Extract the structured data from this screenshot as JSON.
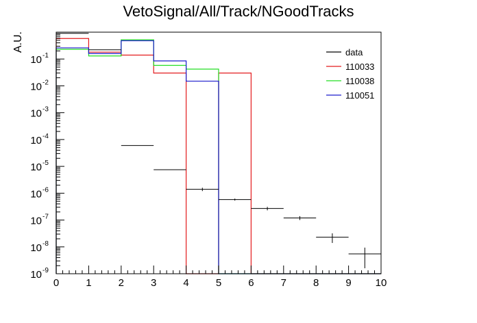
{
  "chart_data": {
    "type": "histogram",
    "title": "VetoSignal/All/Track/NGoodTracks",
    "xlabel": "",
    "ylabel": "A.U.",
    "x_range": [
      0,
      10
    ],
    "y_range": [
      1e-09,
      1
    ],
    "y_scale": "log",
    "grid": false,
    "legend_position": "top-right",
    "bin_edges": [
      0,
      1,
      2,
      3,
      4,
      5,
      6,
      7,
      8,
      9,
      10
    ],
    "x_tick_labels": [
      "0",
      "1",
      "2",
      "3",
      "4",
      "5",
      "6",
      "7",
      "8",
      "9",
      "10"
    ],
    "y_tick_labels": [
      {
        "base": "10",
        "exp": "-9",
        "value": 1e-09
      },
      {
        "base": "10",
        "exp": "-8",
        "value": 1e-08
      },
      {
        "base": "10",
        "exp": "-7",
        "value": 1e-07
      },
      {
        "base": "10",
        "exp": "-6",
        "value": 1e-06
      },
      {
        "base": "10",
        "exp": "-5",
        "value": 1e-05
      },
      {
        "base": "10",
        "exp": "-4",
        "value": 0.0001
      },
      {
        "base": "10",
        "exp": "-3",
        "value": 0.001
      },
      {
        "base": "10",
        "exp": "-2",
        "value": 0.01
      },
      {
        "base": "10",
        "exp": "-1",
        "value": 0.1
      }
    ],
    "series": [
      {
        "name": "data",
        "style": "markers",
        "color": "#000000",
        "values": [
          0.9,
          0.22,
          6e-05,
          7.5e-06,
          1.4e-06,
          5.8e-07,
          2.7e-07,
          1.2e-07,
          2.3e-08,
          5.5e-09
        ],
        "errors_low": [
          0,
          0,
          0,
          0,
          2e-07,
          5e-08,
          4e-08,
          2e-08,
          9e-09,
          3.9e-09
        ],
        "errors_high": [
          0,
          0,
          0,
          0,
          2e-07,
          5e-08,
          4e-08,
          2e-08,
          9e-09,
          3.9e-09
        ]
      },
      {
        "name": "110033",
        "style": "step",
        "color": "#e31a1c",
        "values": [
          0.58,
          0.18,
          0.14,
          0.03,
          0,
          0.03,
          0,
          0,
          0,
          0
        ]
      },
      {
        "name": "110038",
        "style": "step",
        "color": "#22dd22",
        "values": [
          0.23,
          0.13,
          0.52,
          0.058,
          0.042,
          0,
          0,
          0,
          0,
          0
        ]
      },
      {
        "name": "110051",
        "style": "step",
        "color": "#1a1acc",
        "values": [
          0.26,
          0.16,
          0.48,
          0.085,
          0.015,
          0,
          0,
          0,
          0,
          0
        ]
      }
    ]
  }
}
